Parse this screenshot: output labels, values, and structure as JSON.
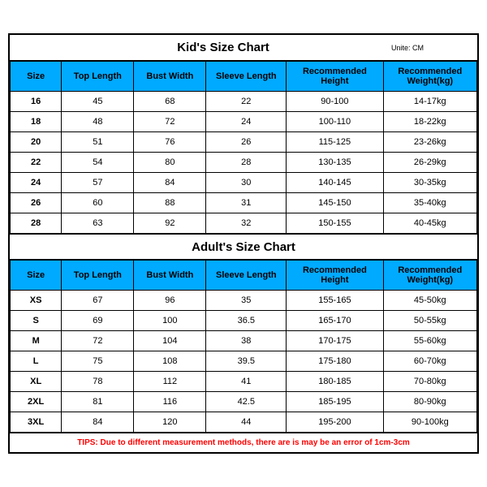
{
  "kids": {
    "title": "Kid's Size Chart",
    "unit": "Unite: CM",
    "headers": {
      "size": "Size",
      "top_length": "Top Length",
      "bust_width": "Bust Width",
      "sleeve_length": "Sleeve Length",
      "rec_height": "Recommended Height",
      "rec_weight": "Recommended Weight(kg)"
    },
    "rows": [
      {
        "size": "16",
        "top": "45",
        "bust": "68",
        "sleeve": "22",
        "h": "90-100",
        "w": "14-17kg"
      },
      {
        "size": "18",
        "top": "48",
        "bust": "72",
        "sleeve": "24",
        "h": "100-110",
        "w": "18-22kg"
      },
      {
        "size": "20",
        "top": "51",
        "bust": "76",
        "sleeve": "26",
        "h": "115-125",
        "w": "23-26kg"
      },
      {
        "size": "22",
        "top": "54",
        "bust": "80",
        "sleeve": "28",
        "h": "130-135",
        "w": "26-29kg"
      },
      {
        "size": "24",
        "top": "57",
        "bust": "84",
        "sleeve": "30",
        "h": "140-145",
        "w": "30-35kg"
      },
      {
        "size": "26",
        "top": "60",
        "bust": "88",
        "sleeve": "31",
        "h": "145-150",
        "w": "35-40kg"
      },
      {
        "size": "28",
        "top": "63",
        "bust": "92",
        "sleeve": "32",
        "h": "150-155",
        "w": "40-45kg"
      }
    ]
  },
  "adults": {
    "title": "Adult's Size Chart",
    "headers": {
      "size": "Size",
      "top_length": "Top Length",
      "bust_width": "Bust Width",
      "sleeve_length": "Sleeve Length",
      "rec_height": "Recommended Height",
      "rec_weight": "Recommended Weight(kg)"
    },
    "rows": [
      {
        "size": "XS",
        "top": "67",
        "bust": "96",
        "sleeve": "35",
        "h": "155-165",
        "w": "45-50kg"
      },
      {
        "size": "S",
        "top": "69",
        "bust": "100",
        "sleeve": "36.5",
        "h": "165-170",
        "w": "50-55kg"
      },
      {
        "size": "M",
        "top": "72",
        "bust": "104",
        "sleeve": "38",
        "h": "170-175",
        "w": "55-60kg"
      },
      {
        "size": "L",
        "top": "75",
        "bust": "108",
        "sleeve": "39.5",
        "h": "175-180",
        "w": "60-70kg"
      },
      {
        "size": "XL",
        "top": "78",
        "bust": "112",
        "sleeve": "41",
        "h": "180-185",
        "w": "70-80kg"
      },
      {
        "size": "2XL",
        "top": "81",
        "bust": "116",
        "sleeve": "42.5",
        "h": "185-195",
        "w": "80-90kg"
      },
      {
        "size": "3XL",
        "top": "84",
        "bust": "120",
        "sleeve": "44",
        "h": "195-200",
        "w": "90-100kg"
      }
    ]
  },
  "tips": "TIPS: Due to different measurement methods, there are is may be an error of 1cm-3cm",
  "colors": {
    "header_bg": "#00aaff",
    "border": "#000000",
    "tips_color": "#ff0000",
    "bg": "#ffffff"
  }
}
